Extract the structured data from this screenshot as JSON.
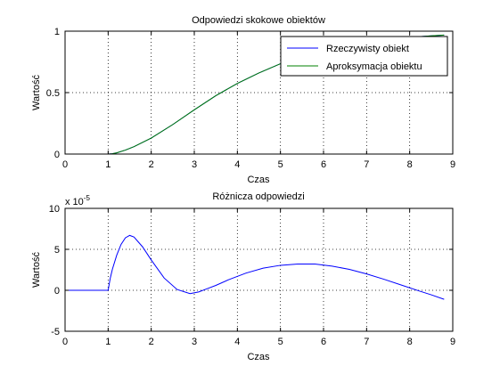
{
  "figure": {
    "background": "#ffffff"
  },
  "chart_data": [
    {
      "type": "line",
      "title": "Odpowiedzi skokowe obiektów",
      "xlabel": "Czas",
      "ylabel": "Wartość",
      "xlim": [
        0,
        9
      ],
      "ylim": [
        0,
        1
      ],
      "xticks": [
        0,
        1,
        2,
        3,
        4,
        5,
        6,
        7,
        8,
        9
      ],
      "yticks": [
        0,
        0.5,
        1
      ],
      "grid": true,
      "legend_position": "top-right",
      "series": [
        {
          "name": "Rzeczywisty obiekt",
          "color": "#0000ff",
          "x": [
            0,
            1,
            1.1,
            1.2,
            1.4,
            1.6,
            2,
            2.5,
            3,
            3.5,
            4,
            4.5,
            5,
            5.5,
            6,
            6.5,
            7,
            7.5,
            8,
            8.5,
            8.8
          ],
          "y": [
            0,
            0,
            0.003,
            0.01,
            0.032,
            0.06,
            0.13,
            0.24,
            0.36,
            0.475,
            0.575,
            0.66,
            0.735,
            0.795,
            0.845,
            0.885,
            0.915,
            0.935,
            0.95,
            0.962,
            0.968
          ]
        },
        {
          "name": "Aproksymacja obiektu",
          "color": "#008000",
          "x": [
            0,
            1,
            1.1,
            1.2,
            1.4,
            1.6,
            2,
            2.5,
            3,
            3.5,
            4,
            4.5,
            5,
            5.5,
            6,
            6.5,
            7,
            7.5,
            8,
            8.5,
            8.8
          ],
          "y": [
            0,
            0,
            0.003,
            0.01,
            0.032,
            0.06,
            0.13,
            0.24,
            0.36,
            0.475,
            0.575,
            0.66,
            0.735,
            0.795,
            0.845,
            0.885,
            0.915,
            0.935,
            0.95,
            0.962,
            0.968
          ]
        }
      ]
    },
    {
      "type": "line",
      "title": "Różnicza odpowiedzi",
      "xlabel": "Czas",
      "ylabel": "Wartość",
      "exponent_label": "x 10",
      "exponent_power": "-5",
      "xlim": [
        0,
        9
      ],
      "ylim": [
        -5,
        10
      ],
      "xticks": [
        0,
        1,
        2,
        3,
        4,
        5,
        6,
        7,
        8,
        9
      ],
      "yticks": [
        -5,
        0,
        5,
        10
      ],
      "grid": true,
      "series": [
        {
          "color": "#0000ff",
          "x": [
            0,
            1,
            1.05,
            1.1,
            1.2,
            1.3,
            1.4,
            1.5,
            1.6,
            1.8,
            2,
            2.3,
            2.6,
            2.9,
            3.1,
            3.3,
            3.5,
            3.8,
            4.2,
            4.6,
            5,
            5.4,
            5.8,
            6.2,
            6.6,
            7,
            7.4,
            7.8,
            8.2,
            8.5,
            8.8
          ],
          "y": [
            0,
            0,
            1.5,
            2.6,
            4.3,
            5.6,
            6.4,
            6.7,
            6.5,
            5.3,
            3.7,
            1.5,
            0.1,
            -0.4,
            -0.2,
            0.2,
            0.6,
            1.3,
            2.1,
            2.7,
            3.05,
            3.2,
            3.2,
            2.95,
            2.55,
            2.0,
            1.35,
            0.65,
            -0.05,
            -0.55,
            -1.1
          ]
        }
      ]
    }
  ]
}
